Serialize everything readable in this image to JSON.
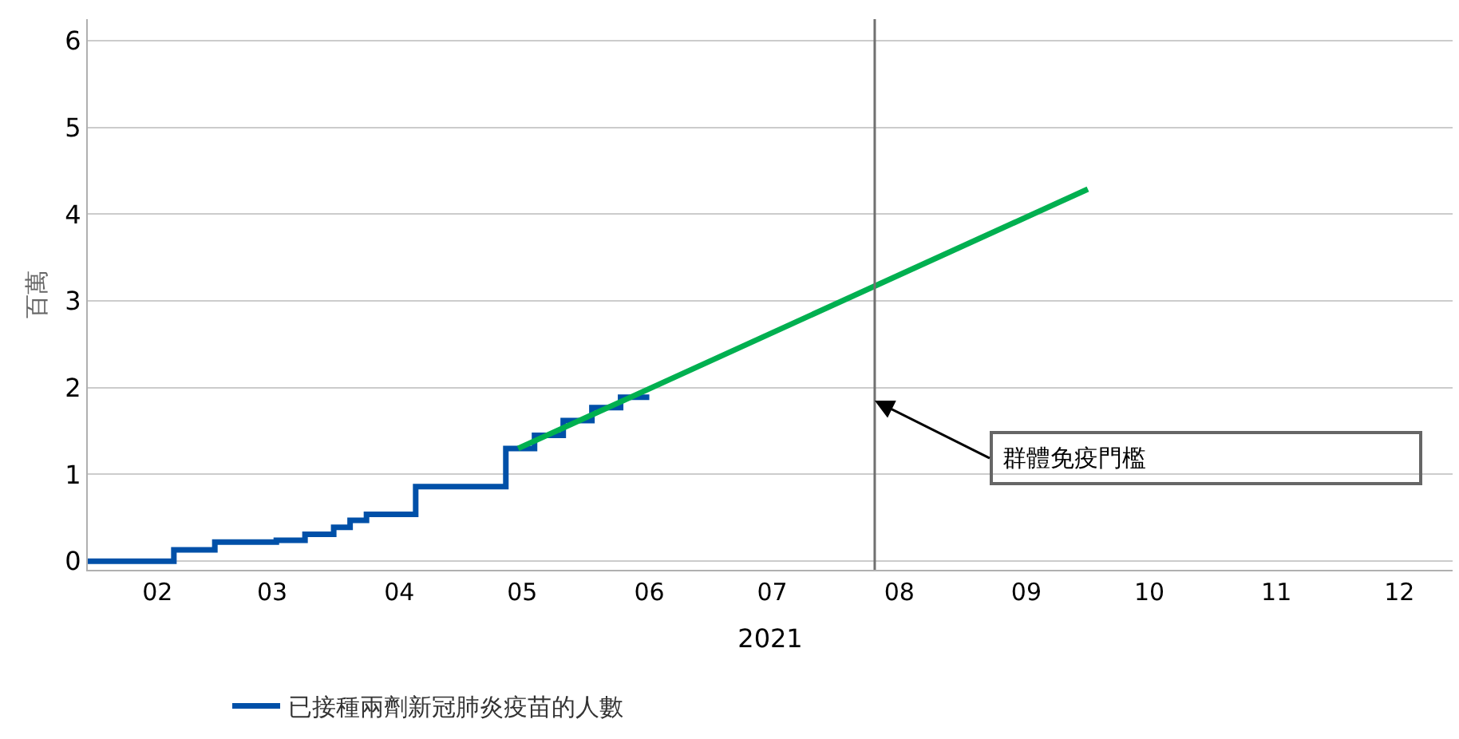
{
  "chart_data": {
    "type": "line",
    "xlabel": "2021",
    "ylabel": "百萬",
    "xlim": [
      "2021-01-29",
      "2021-12-28"
    ],
    "xticks": [
      {
        "value": "2021-02-15",
        "label": "02"
      },
      {
        "value": "2021-03-15",
        "label": "03"
      },
      {
        "value": "2021-04-15",
        "label": "04"
      },
      {
        "value": "2021-05-15",
        "label": "05"
      },
      {
        "value": "2021-06-15",
        "label": "06"
      },
      {
        "value": "2021-07-15",
        "label": "07"
      },
      {
        "value": "2021-08-15",
        "label": "08"
      },
      {
        "value": "2021-09-15",
        "label": "09"
      },
      {
        "value": "2021-10-15",
        "label": "10"
      },
      {
        "value": "2021-11-15",
        "label": "11"
      },
      {
        "value": "2021-12-15",
        "label": "12"
      }
    ],
    "ylim": [
      -0.1,
      6.25
    ],
    "yticks": [
      0,
      1,
      2,
      3,
      4,
      5,
      6
    ],
    "grid": "y",
    "legend": "bottom",
    "marker": "none",
    "line_style": "solid",
    "series": [
      {
        "name": "已接種兩劑新冠肺炎疫苗的人數",
        "type": "step",
        "color": "#0050a8",
        "x": [
          "2021-01-29",
          "2021-02-19",
          "2021-03-01",
          "2021-03-16",
          "2021-03-23",
          "2021-03-30",
          "2021-04-03",
          "2021-04-07",
          "2021-04-19",
          "2021-05-11",
          "2021-05-18",
          "2021-05-25",
          "2021-06-01",
          "2021-06-08",
          "2021-06-15"
        ],
        "values": [
          0.0,
          0.13,
          0.22,
          0.24,
          0.31,
          0.39,
          0.47,
          0.54,
          0.86,
          1.3,
          1.45,
          1.62,
          1.77,
          1.89,
          1.89
        ]
      },
      {
        "color": "#00b050",
        "x": [
          "2021-05-14",
          "2021-09-30"
        ],
        "values": [
          1.3,
          4.29
        ]
      }
    ],
    "ref_lines": [
      {
        "axis": "x",
        "value": "2021-08-09",
        "color": "#707070"
      }
    ],
    "annotations": [
      {
        "text": "群體免疫門檻",
        "x": "2021-08-09",
        "y": 1.85
      }
    ]
  }
}
